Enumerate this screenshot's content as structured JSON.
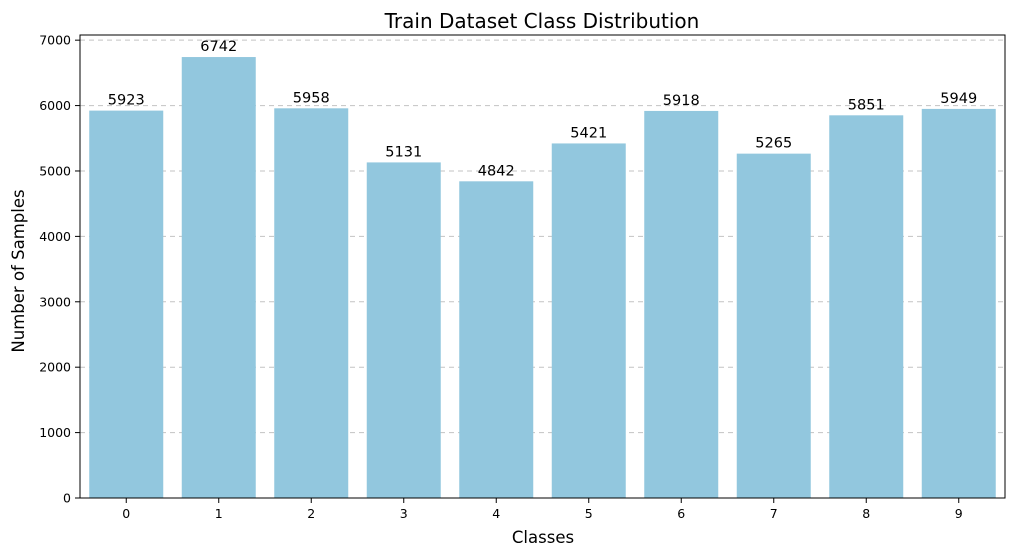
{
  "chart_data": {
    "type": "bar",
    "title": "Train Dataset Class Distribution",
    "xlabel": "Classes",
    "ylabel": "Number of Samples",
    "categories": [
      "0",
      "1",
      "2",
      "3",
      "4",
      "5",
      "6",
      "7",
      "8",
      "9"
    ],
    "values": [
      5923,
      6742,
      5958,
      5131,
      4842,
      5421,
      5918,
      5265,
      5851,
      5949
    ],
    "data_labels": [
      "5923",
      "6742",
      "5958",
      "5131",
      "4842",
      "5421",
      "5918",
      "5265",
      "5851",
      "5949"
    ],
    "ylim": [
      0,
      7079
    ],
    "yticks": [
      0,
      1000,
      2000,
      3000,
      4000,
      5000,
      6000,
      7000
    ],
    "ytick_labels": [
      "0",
      "1000",
      "2000",
      "3000",
      "4000",
      "5000",
      "6000",
      "7000"
    ],
    "grid": "y-dashed",
    "bar_color": "#92c7de"
  }
}
